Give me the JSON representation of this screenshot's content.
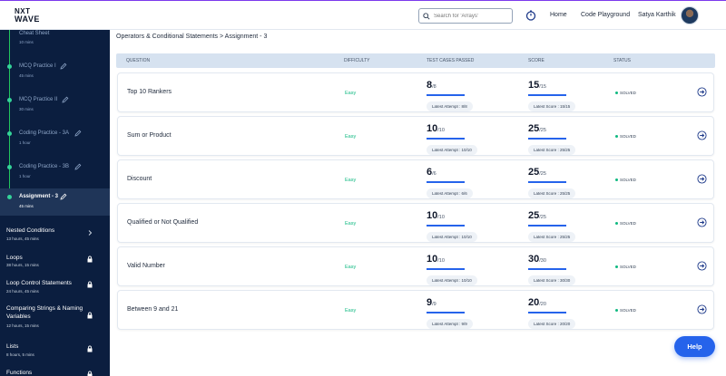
{
  "header": {
    "logo_line1": "NXT",
    "logo_line2": "WAVE",
    "search_placeholder": "Search for 'Arrays'",
    "nav_home": "Home",
    "nav_playground": "Code Playground",
    "user_name": "Satya Karthik"
  },
  "sidebar": {
    "steps": [
      {
        "title": "Cheat Sheet",
        "duration": "10 mins"
      },
      {
        "title": "MCQ Practice I",
        "duration": "45 mins"
      },
      {
        "title": "MCQ Practice II",
        "duration": "30 mins"
      },
      {
        "title": "Coding Practice - 3A",
        "duration": "1 hour"
      },
      {
        "title": "Coding Practice - 3B",
        "duration": "1 hour"
      },
      {
        "title": "Assignment - 3",
        "duration": "45 mins"
      }
    ],
    "topics": [
      {
        "title": "Nested Conditions",
        "duration": "13 hours, 45 mins"
      },
      {
        "title": "Loops",
        "duration": "38 hours, 15 mins"
      },
      {
        "title": "Loop Control Statements",
        "duration": "24 hours, 45 mins"
      },
      {
        "title": "Comparing Strings & Naming Variables",
        "duration": "12 hours, 15 mins"
      },
      {
        "title": "Lists",
        "duration": "8 hours, 5 mins"
      },
      {
        "title": "Functions",
        "duration": ""
      }
    ]
  },
  "breadcrumb": "Operators & Conditional Statements > Assignment - 3",
  "table": {
    "headers": [
      "QUESTION",
      "DIFFICULTY",
      "TEST CASES PASSED",
      "SCORE",
      "STATUS"
    ],
    "rows": [
      {
        "question": "Top 10 Rankers",
        "difficulty": "Easy",
        "tc": "8",
        "tc_total": "/8",
        "tc_note": "Latest Attempt : 8/8",
        "score": "15",
        "score_total": "/15",
        "score_note": "Latest Score : 15/15",
        "status": "SOLVED"
      },
      {
        "question": "Sum or Product",
        "difficulty": "Easy",
        "tc": "10",
        "tc_total": "/10",
        "tc_note": "Latest Attempt : 10/10",
        "score": "25",
        "score_total": "/25",
        "score_note": "Latest Score : 25/25",
        "status": "SOLVED"
      },
      {
        "question": "Discount",
        "difficulty": "Easy",
        "tc": "6",
        "tc_total": "/6",
        "tc_note": "Latest Attempt : 6/6",
        "score": "25",
        "score_total": "/25",
        "score_note": "Latest Score : 25/25",
        "status": "SOLVED"
      },
      {
        "question": "Qualified or Not Qualified",
        "difficulty": "Easy",
        "tc": "10",
        "tc_total": "/10",
        "tc_note": "Latest Attempt : 10/10",
        "score": "25",
        "score_total": "/25",
        "score_note": "Latest Score : 25/25",
        "status": "SOLVED"
      },
      {
        "question": "Valid Number",
        "difficulty": "Easy",
        "tc": "10",
        "tc_total": "/10",
        "tc_note": "Latest Attempt : 10/10",
        "score": "30",
        "score_total": "/30",
        "score_note": "Latest Score : 30/30",
        "status": "SOLVED"
      },
      {
        "question": "Between 9 and 21",
        "difficulty": "Easy",
        "tc": "9",
        "tc_total": "/9",
        "tc_note": "Latest Attempt : 9/9",
        "score": "20",
        "score_total": "/20",
        "score_note": "Latest Score : 20/20",
        "status": "SOLVED"
      }
    ]
  },
  "help_label": "Help",
  "colors": {
    "accent": "#2563eb",
    "sidebar_bg": "#0b1e3f",
    "solved": "#10b981"
  }
}
